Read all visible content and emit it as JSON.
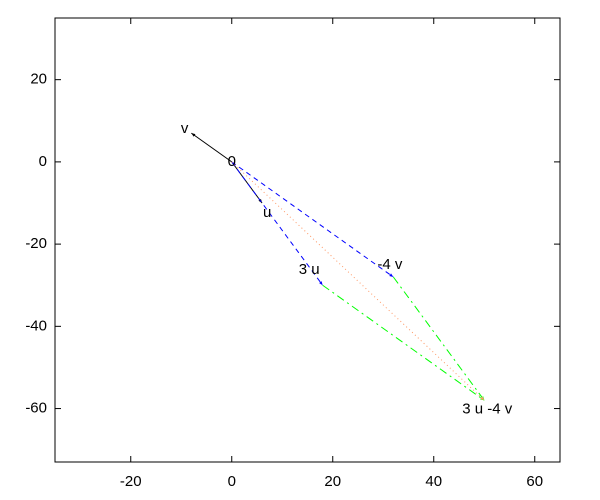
{
  "chart_data": {
    "type": "vector",
    "xlim": [
      -35,
      65
    ],
    "ylim": [
      -73,
      35
    ],
    "xticks": [
      -20,
      0,
      20,
      40,
      60
    ],
    "yticks": [
      20,
      0,
      -20,
      -40,
      -60
    ],
    "series": [
      {
        "color": "#000000",
        "dash": "solid",
        "x": [
          0,
          -8
        ],
        "y": [
          0,
          7
        ]
      },
      {
        "color": "#000000",
        "dash": "solid",
        "x": [
          0,
          6
        ],
        "y": [
          0,
          -10
        ]
      },
      {
        "color": "#0000ff",
        "dash": "dashed",
        "x": [
          0,
          18
        ],
        "y": [
          0,
          -30
        ]
      },
      {
        "color": "#0000ff",
        "dash": "dashed",
        "x": [
          0,
          32
        ],
        "y": [
          0,
          -28
        ]
      },
      {
        "color": "#00ff00",
        "dash": "dashdot",
        "x": [
          18,
          50
        ],
        "y": [
          -30,
          -58
        ]
      },
      {
        "color": "#00ff00",
        "dash": "dashdot",
        "x": [
          32,
          50
        ],
        "y": [
          -28,
          -58
        ]
      },
      {
        "color": "#ff9966",
        "dash": "dotted",
        "x": [
          0,
          50
        ],
        "y": [
          0,
          -58
        ]
      }
    ],
    "labels": [
      {
        "text": "0",
        "x": 0,
        "y": 0
      },
      {
        "text": "v",
        "x": -8,
        "y": 7
      },
      {
        "text": "u",
        "x": 6,
        "y": -10
      },
      {
        "text": "3 u",
        "x": 18,
        "y": -30
      },
      {
        "text": "-4 v",
        "x": 32,
        "y": -28
      },
      {
        "text": "3 u -4 v",
        "x": 50,
        "y": -58
      }
    ]
  }
}
